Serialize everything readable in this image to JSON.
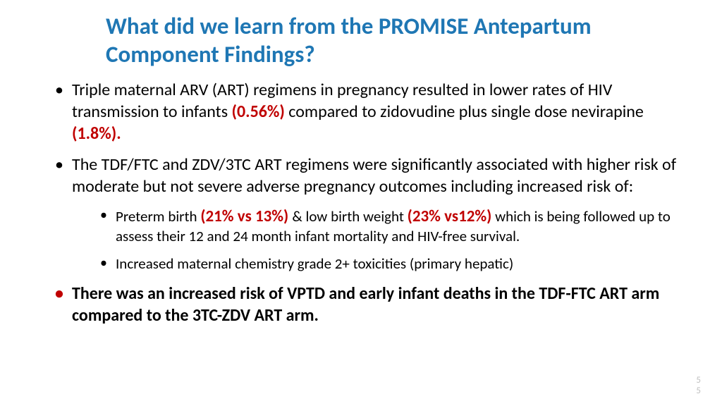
{
  "title": "What did we learn from the PROMISE Antepartum Component Findings?",
  "bullets": {
    "b1_a": "Triple maternal ARV (ART) regimens in pregnancy resulted in lower rates of HIV transmission to infants ",
    "b1_pct1": "(0.56%)",
    "b1_b": " compared to zidovudine plus single dose nevirapine ",
    "b1_pct2": "(1.8%).",
    "b2": "The TDF/FTC and ZDV/3TC ART regimens were  significantly associated with higher risk of moderate but not severe adverse pregnancy outcomes including increased risk of:",
    "s1_a": "Preterm birth ",
    "s1_v1": "(21% vs 13%) ",
    "s1_b": "& low birth weight ",
    "s1_v2": "(23% vs12%)",
    "s1_c": " which is being followed up  to assess their 12 and 24  month infant mortality and HIV-free survival.",
    "s2": "Increased maternal chemistry grade 2+  toxicities (primary hepatic)",
    "b3": "There was an increased risk of VPTD and early infant deaths in the TDF-FTC ART  arm compared to the 3TC-ZDV ART arm."
  },
  "pagenum_top": "5",
  "pagenum_bottom": "5",
  "colors": {
    "title": "#1f77b4",
    "highlight": "#c00000",
    "body": "#000000",
    "pagenum": "#bfbfbf",
    "background": "#ffffff"
  }
}
